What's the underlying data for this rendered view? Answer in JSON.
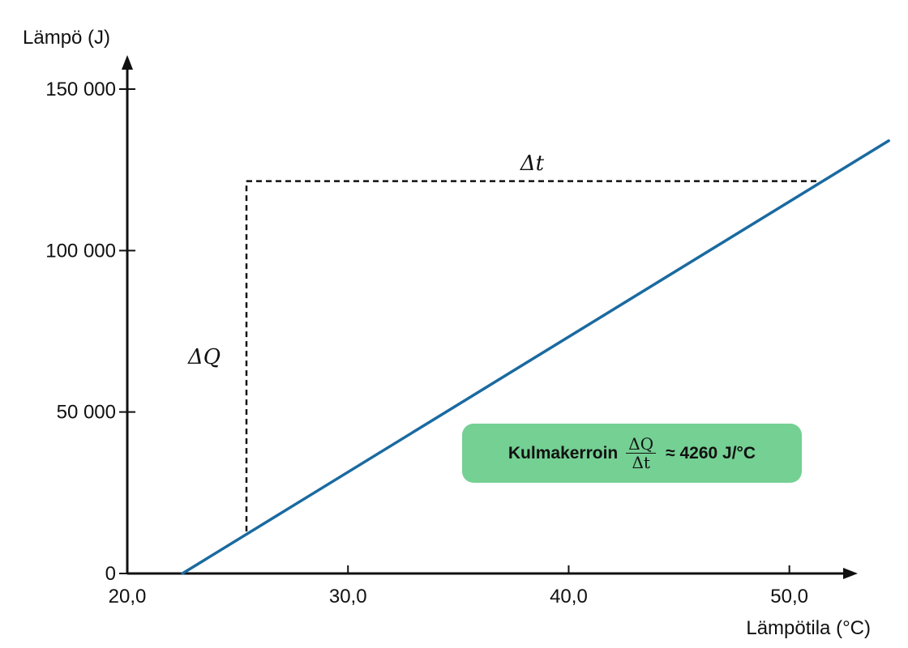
{
  "chart_data": {
    "type": "line",
    "ylabel": "Lämpö (J)",
    "xlabel": "Lämpötila (°C)",
    "xlim": [
      20,
      56
    ],
    "ylim": [
      0,
      150000
    ],
    "x_ticks": [
      20,
      30,
      40,
      50
    ],
    "x_tick_labels": [
      "20,0",
      "30,0",
      "40,0",
      "50,0"
    ],
    "y_ticks": [
      0,
      50000,
      100000,
      150000
    ],
    "y_tick_labels": [
      "0",
      "50 000",
      "100 000",
      "150 000"
    ],
    "series": [
      {
        "x": [
          22.5,
          54.5
        ],
        "y": [
          0,
          134000
        ],
        "color": "#1a6aa0"
      }
    ],
    "slope_triangle": {
      "x_start": 25.4,
      "x_end": 51.3,
      "y_bottom": 13000,
      "y_top": 121500,
      "delta_x_label": "Δt",
      "delta_y_label": "ΔQ"
    },
    "annotation": {
      "prefix": "Kulmakerroin",
      "fraction_numerator": "ΔQ",
      "fraction_denominator": "Δt",
      "suffix": "≈ 4260 J/°C",
      "background": "#74d093"
    }
  }
}
